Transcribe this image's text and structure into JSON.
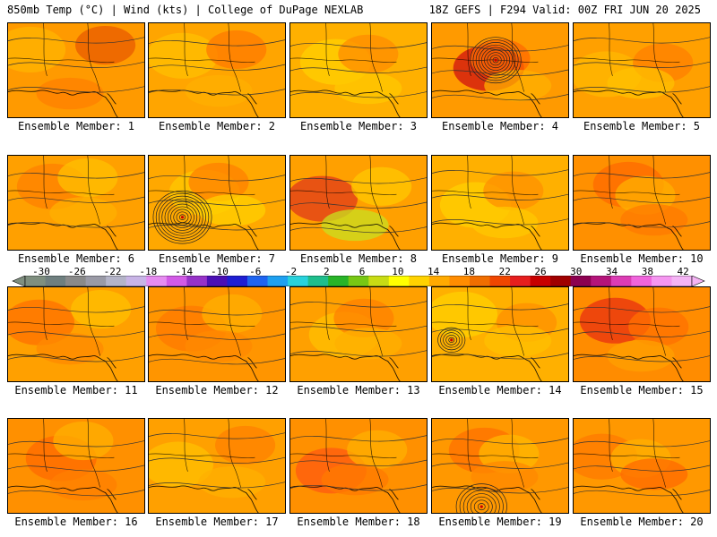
{
  "header": {
    "left": "850mb Temp (°C) | Wind (kts) | College of DuPage NEXLAB",
    "right": "18Z GEFS | F294 Valid: 00Z FRI JUN 20 2025"
  },
  "colorbar": {
    "labels": [
      "-30",
      "-26",
      "-22",
      "-18",
      "-14",
      "-10",
      "-6",
      "-2",
      "2",
      "6",
      "10",
      "14",
      "18",
      "22",
      "26",
      "30",
      "34",
      "38",
      "42"
    ],
    "colors": [
      "#7f8f7f",
      "#6f7f7f",
      "#8a8a8a",
      "#9a9aa6",
      "#b4b4c8",
      "#c8b4e6",
      "#e68cf0",
      "#d25ae6",
      "#9632c8",
      "#4b0fb4",
      "#1e1ed2",
      "#1e64f0",
      "#1ea0f0",
      "#28d2dc",
      "#1ebe8c",
      "#28b428",
      "#78c814",
      "#c8dc14",
      "#ffff00",
      "#ffd200",
      "#ffaa00",
      "#ff8c00",
      "#f06e00",
      "#f04600",
      "#e61e1e",
      "#c80000",
      "#a00000",
      "#8c0050",
      "#b4147a",
      "#dc3cb4",
      "#f064dc",
      "#f596f0",
      "#f5b4f5"
    ]
  },
  "panels": [
    {
      "label": "Ensemble Member: 1",
      "base": "#ff9a00",
      "tint": [
        "#ffb400",
        "#e85a00",
        "#ff7f00"
      ],
      "cyclone": null
    },
    {
      "label": "Ensemble Member: 2",
      "base": "#ffa500",
      "tint": [
        "#ffc000",
        "#ff7a00",
        "#ffb000"
      ],
      "cyclone": null
    },
    {
      "label": "Ensemble Member: 3",
      "base": "#ffb000",
      "tint": [
        "#ffd000",
        "#ff8c00",
        "#ffc800"
      ],
      "cyclone": null
    },
    {
      "label": "Ensemble Member: 4",
      "base": "#ff9a00",
      "tint": [
        "#d01010",
        "#ff6a00",
        "#ffb000"
      ],
      "cyclone": "north"
    },
    {
      "label": "Ensemble Member: 5",
      "base": "#ffa000",
      "tint": [
        "#ffb800",
        "#ff7f00",
        "#ffc000"
      ],
      "cyclone": null
    },
    {
      "label": "Ensemble Member: 6",
      "base": "#ffa000",
      "tint": [
        "#ff8000",
        "#ffc000",
        "#ffb000"
      ],
      "cyclone": null
    },
    {
      "label": "Ensemble Member: 7",
      "base": "#ffa800",
      "tint": [
        "#ffc800",
        "#ff8000",
        "#ffd000"
      ],
      "cyclone": "gulf"
    },
    {
      "label": "Ensemble Member: 8",
      "base": "#ffa000",
      "tint": [
        "#e03a1a",
        "#ffc800",
        "#c8e020"
      ],
      "cyclone": null
    },
    {
      "label": "Ensemble Member: 9",
      "base": "#ffb000",
      "tint": [
        "#ffd000",
        "#ff9000",
        "#ffc800"
      ],
      "cyclone": null
    },
    {
      "label": "Ensemble Member: 10",
      "base": "#ff9000",
      "tint": [
        "#ff6a00",
        "#ffb000",
        "#ff7a00"
      ],
      "cyclone": null
    },
    {
      "label": "Ensemble Member: 11",
      "base": "#ffa000",
      "tint": [
        "#ff7000",
        "#ffc000",
        "#ff8a00"
      ],
      "cyclone": null
    },
    {
      "label": "Ensemble Member: 12",
      "base": "#ff9500",
      "tint": [
        "#ff7a00",
        "#ffb000",
        "#ff8a00"
      ],
      "cyclone": null
    },
    {
      "label": "Ensemble Member: 13",
      "base": "#ffa000",
      "tint": [
        "#ffc000",
        "#ff8000",
        "#ffb000"
      ],
      "cyclone": null
    },
    {
      "label": "Ensemble Member: 14",
      "base": "#ffb000",
      "tint": [
        "#ffd000",
        "#ff9000",
        "#ffc000"
      ],
      "cyclone": "west"
    },
    {
      "label": "Ensemble Member: 15",
      "base": "#ff8c00",
      "tint": [
        "#e83010",
        "#ff7000",
        "#ffa000"
      ],
      "cyclone": null
    },
    {
      "label": "Ensemble Member: 16",
      "base": "#ff9000",
      "tint": [
        "#ff6a00",
        "#ffb000",
        "#ff7f00"
      ],
      "cyclone": null
    },
    {
      "label": "Ensemble Member: 17",
      "base": "#ffa000",
      "tint": [
        "#ffc000",
        "#ff8000",
        "#ffb000"
      ],
      "cyclone": null
    },
    {
      "label": "Ensemble Member: 18",
      "base": "#ff9000",
      "tint": [
        "#ff5a10",
        "#ffb000",
        "#ff7a00"
      ],
      "cyclone": null
    },
    {
      "label": "Ensemble Member: 19",
      "base": "#ff9800",
      "tint": [
        "#ff7000",
        "#ffb800",
        "#ff8800"
      ],
      "cyclone": "south"
    },
    {
      "label": "Ensemble Member: 20",
      "base": "#ff9800",
      "tint": [
        "#ff7a00",
        "#ffb000",
        "#ff6a00"
      ],
      "cyclone": null
    }
  ]
}
